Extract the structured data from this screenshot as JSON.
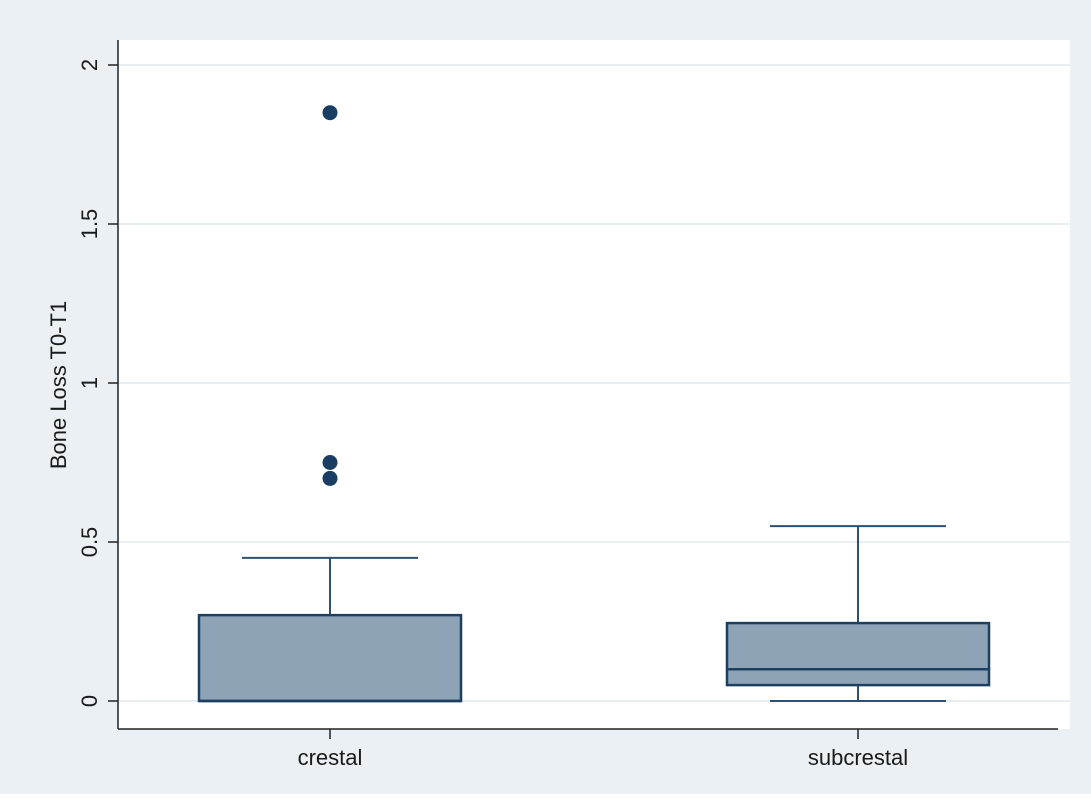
{
  "colors": {
    "outer_background": "#eaf0f3",
    "plot_background": "#ffffff",
    "box_fill": "#8fa3b7",
    "box_stroke": "#1d3f60",
    "whisker": "#2d4f70",
    "outlier": "#1a3d63",
    "gridline": "#e8eef2",
    "axis": "#222222"
  },
  "chart_data": {
    "type": "box",
    "title": "",
    "xlabel": "",
    "ylabel": "Bone Loss T0-T1",
    "ylim": [
      -0.09,
      2.08
    ],
    "yticks": [
      0,
      0.5,
      1,
      1.5,
      2
    ],
    "ytick_labels": [
      "0",
      "0.5",
      "1",
      "1.5",
      "2"
    ],
    "grid": true,
    "categories": [
      "crestal",
      "subcrestal"
    ],
    "boxes": [
      {
        "category": "crestal",
        "whisker_low": 0,
        "q1": 0,
        "median": 0,
        "q3": 0.27,
        "whisker_high": 0.45,
        "outliers": [
          1.85,
          0.75,
          0.7
        ]
      },
      {
        "category": "subcrestal",
        "whisker_low": 0,
        "q1": 0.05,
        "median": 0.1,
        "q3": 0.245,
        "whisker_high": 0.55,
        "outliers": []
      }
    ]
  }
}
